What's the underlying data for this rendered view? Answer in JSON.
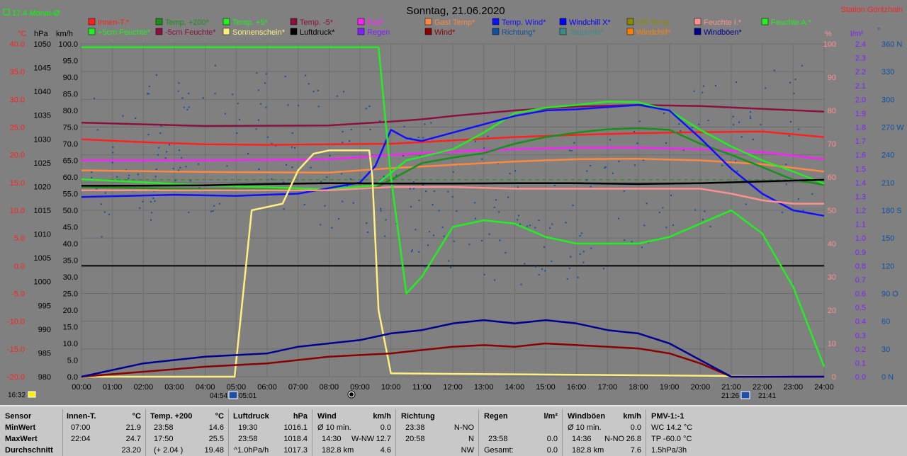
{
  "header": {
    "title": "Sonntag, 21.06.2020",
    "station": "Station Göritzhain",
    "avg_label": "17.4 Monat-Ø"
  },
  "legend": [
    {
      "label": "Innen-T.*",
      "color": "#ff2020"
    },
    {
      "label": "Temp. +200*",
      "color": "#1a8f1a"
    },
    {
      "label": "Temp. +5*",
      "color": "#22ee22"
    },
    {
      "label": "Temp. -5*",
      "color": "#8a1040"
    },
    {
      "label": "Bad*",
      "color": "#ff20ff"
    },
    {
      "label": "Gast Temp*",
      "color": "#ff8840"
    },
    {
      "label": "Temp. Wind*",
      "color": "#1010ff"
    },
    {
      "label": "Windchill X*",
      "color": "#0000ff"
    },
    {
      "label": "Diff Temp.",
      "color": "#8a8a00"
    },
    {
      "label": "Feuchte I.*",
      "color": "#ff9090"
    },
    {
      "label": "Feuchte A.*",
      "color": "#22ee22"
    },
    {
      "label": "+5cm Feuchte*",
      "color": "#22ee22"
    },
    {
      "label": "-5cm Feuchte*",
      "color": "#8a1040"
    },
    {
      "label": "Sonnenschein*",
      "color": "#ffee80"
    },
    {
      "label": "Luftdruck*",
      "color": "#000000"
    },
    {
      "label": "Regen",
      "color": "#8020ff"
    },
    {
      "label": "Wind*",
      "color": "#8a0000"
    },
    {
      "label": "Richtung*",
      "color": "#1050a0"
    },
    {
      "label": "Taupunkt*",
      "color": "#3a8a8a"
    },
    {
      "label": "Windchill*",
      "color": "#ff8000"
    },
    {
      "label": "Windböen*",
      "color": "#000090"
    }
  ],
  "axes": {
    "temp_unit": "°C",
    "pressure_unit": "hPa",
    "wind_unit": "km/h",
    "humidity_unit": "%",
    "rain_unit": "l/m²",
    "dir_unit": "°",
    "temp_ticks": [
      "40.0",
      "35.0",
      "30.0",
      "25.0",
      "20.0",
      "15.0",
      "10.0",
      "5.0",
      "0.0",
      "-5.0",
      "-10.0",
      "-15.0",
      "-20.0"
    ],
    "pressure_ticks": [
      "1050",
      "1045",
      "1040",
      "1035",
      "1030",
      "1025",
      "1020",
      "1015",
      "1010",
      "1005",
      "1000",
      "995",
      "990",
      "985",
      "980"
    ],
    "wind_ticks": [
      "100.0",
      "95.0",
      "90.0",
      "85.0",
      "80.0",
      "75.0",
      "70.0",
      "65.0",
      "60.0",
      "55.0",
      "50.0",
      "45.0",
      "40.0",
      "35.0",
      "30.0",
      "25.0",
      "20.0",
      "15.0",
      "10.0",
      "5.0",
      "0.0"
    ],
    "humidity_ticks": [
      "100",
      "90",
      "80",
      "70",
      "60",
      "50",
      "40",
      "30",
      "20",
      "10",
      "0"
    ],
    "rain_ticks": [
      "2.4",
      "2.3",
      "2.2",
      "2.1",
      "2.0",
      "1.9",
      "1.8",
      "1.7",
      "1.6",
      "1.5",
      "1.4",
      "1.3",
      "1.2",
      "1.1",
      "1.0",
      "0.9",
      "0.8",
      "0.7",
      "0.6",
      "0.5",
      "0.4",
      "0.3",
      "0.2",
      "0.1",
      "0.0"
    ],
    "dir_ticks": [
      "360 N",
      "330",
      "300",
      "270 W",
      "240",
      "210",
      "180 S",
      "150",
      "120",
      "90 O",
      "60",
      "30",
      "0 N"
    ],
    "time_ticks": [
      "00:00",
      "01:00",
      "02:00",
      "03:00",
      "04:00",
      "05:00",
      "06:00",
      "07:00",
      "08:00",
      "09:00",
      "10:00",
      "11:00",
      "12:00",
      "13:00",
      "14:00",
      "15:00",
      "16:00",
      "17:00",
      "18:00",
      "19:00",
      "20:00",
      "21:00",
      "22:00",
      "23:00",
      "24:00"
    ],
    "sunrise_label": "04:54",
    "sunrise2_label": "05:01",
    "sunset_label": "21:26",
    "sunset2_label": "21:41",
    "clock_label": "16:32"
  },
  "chart_data": {
    "type": "line",
    "x_unit": "hours",
    "xlim": [
      0,
      24
    ],
    "temp_ylim": [
      -20,
      40
    ],
    "wind_ylim": [
      0,
      100
    ],
    "humidity_ylim": [
      0,
      100
    ],
    "series": [
      {
        "name": "Innen-T.*",
        "color": "#ff2020",
        "axis": "temp",
        "x": [
          0,
          2,
          4,
          6,
          8,
          10,
          12,
          14,
          16,
          18,
          20,
          22,
          24
        ],
        "y": [
          22.8,
          22.3,
          21.9,
          21.8,
          21.9,
          22.0,
          22.6,
          23.2,
          23.6,
          23.9,
          24.1,
          24.2,
          23.2
        ]
      },
      {
        "name": "Bad*",
        "color": "#ff20ff",
        "axis": "temp",
        "x": [
          0,
          4,
          8,
          10,
          12,
          14,
          16,
          18,
          20,
          22,
          24
        ],
        "y": [
          19.0,
          19.0,
          19.2,
          20.0,
          20.6,
          21.0,
          21.3,
          21.3,
          21.0,
          20.5,
          19.2
        ]
      },
      {
        "name": "Gast Temp*",
        "color": "#ff8840",
        "axis": "temp",
        "x": [
          0,
          4,
          8,
          10,
          12,
          14,
          16,
          18,
          20,
          22,
          24
        ],
        "y": [
          17.2,
          16.9,
          16.8,
          17.6,
          18.2,
          18.8,
          19.2,
          19.3,
          19.0,
          18.3,
          17.0
        ]
      },
      {
        "name": "Temp. -5*",
        "color": "#8a1040",
        "axis": "temp",
        "x": [
          0,
          4,
          8,
          10,
          11,
          12,
          14,
          16,
          18,
          20,
          22,
          24
        ],
        "y": [
          25.8,
          25.2,
          25.3,
          26.0,
          26.4,
          27.0,
          28.0,
          28.7,
          29.0,
          28.8,
          28.3,
          27.8
        ]
      },
      {
        "name": "Temp. +200*",
        "color": "#1a8f1a",
        "axis": "temp",
        "x": [
          0,
          4,
          8,
          9.5,
          11,
          12,
          13,
          14,
          15,
          16,
          17,
          18,
          19,
          20,
          21,
          22,
          23,
          24
        ],
        "y": [
          14.2,
          13.8,
          13.7,
          14.0,
          18.5,
          19.5,
          20.3,
          22.0,
          23.2,
          24.0,
          24.6,
          24.8,
          24.5,
          22.0,
          20.0,
          17.8,
          15.5,
          14.6
        ]
      },
      {
        "name": "Temp. +5*",
        "color": "#22ee22",
        "axis": "temp",
        "x": [
          0,
          4,
          8,
          9.5,
          10.5,
          12,
          13,
          14,
          15,
          16,
          17,
          18,
          19,
          20,
          21,
          22,
          23,
          24
        ],
        "y": [
          15.6,
          14.5,
          13.8,
          14.5,
          19.0,
          21.0,
          24.0,
          27.5,
          28.5,
          29.0,
          29.6,
          29.5,
          28.0,
          24.5,
          21.5,
          19.0,
          17.0,
          14.8
        ]
      },
      {
        "name": "Temp. Wind*",
        "color": "#1010ff",
        "axis": "temp",
        "x": [
          0,
          3,
          5,
          7,
          8,
          9,
          9.5,
          10,
          10.5,
          11,
          12,
          13,
          14,
          15,
          16,
          17,
          18,
          19,
          20,
          21,
          22,
          23,
          24
        ],
        "y": [
          12.4,
          12.8,
          12.6,
          13.0,
          14.0,
          15.0,
          18.0,
          24.5,
          23.0,
          22.5,
          24.0,
          25.5,
          27.0,
          28.0,
          28.2,
          28.6,
          29.0,
          28.0,
          23.0,
          17.5,
          13.0,
          10.0,
          9.0
        ]
      },
      {
        "name": "Feuchte I.*",
        "color": "#ff9090",
        "axis": "humidity",
        "x": [
          0,
          4,
          8,
          10,
          12,
          14,
          16,
          18,
          20,
          21,
          22,
          23,
          24
        ],
        "y": [
          56.0,
          56.0,
          56.0,
          57.0,
          57.0,
          56.5,
          56.5,
          56.5,
          56.5,
          55.0,
          53.0,
          52.0,
          52.0
        ]
      },
      {
        "name": "Feuchte A.*",
        "color": "#22ee22",
        "axis": "humidity",
        "x": [
          0,
          9.6,
          10,
          10.5,
          11,
          12,
          13,
          14,
          15,
          16,
          17,
          18,
          19,
          20,
          21,
          22,
          22.5,
          23,
          23.5,
          24
        ],
        "y": [
          99,
          99,
          60,
          25,
          30,
          45,
          47,
          46,
          42,
          40,
          40,
          40,
          42,
          46,
          50,
          43,
          35,
          27,
          15,
          3
        ]
      },
      {
        "name": "Luftdruck*",
        "color": "#000000",
        "axis": "pressure",
        "x": [
          0,
          2,
          4,
          6,
          8,
          10,
          12,
          14,
          16,
          18,
          20,
          22,
          24
        ],
        "y": [
          1016.2,
          1016.2,
          1016.3,
          1016.6,
          1016.8,
          1016.7,
          1016.7,
          1016.8,
          1016.8,
          1016.6,
          1016.8,
          1017.2,
          1017.6
        ]
      },
      {
        "name": "Sonnenschein*",
        "color": "#ffee80",
        "axis": "humidity",
        "x": [
          0,
          4.95,
          5.5,
          6.5,
          7.0,
          7.5,
          8.0,
          8.5,
          9.0,
          9.3,
          9.4,
          9.6,
          10.0,
          24
        ],
        "y": [
          0,
          0,
          50,
          52,
          62,
          67,
          68,
          68,
          68,
          68,
          60,
          20,
          1,
          0
        ]
      },
      {
        "name": "Wind*",
        "color": "#8a0000",
        "axis": "wind",
        "x": [
          0,
          2,
          4,
          6,
          7,
          8,
          9,
          10,
          11,
          12,
          13,
          14,
          15,
          16,
          17,
          18,
          19,
          20,
          21,
          22,
          24
        ],
        "y": [
          0,
          1.5,
          3.0,
          4.0,
          5.0,
          6.0,
          6.5,
          7.0,
          8.0,
          9.0,
          9.5,
          9.0,
          10.0,
          9.5,
          9.0,
          8.5,
          7.0,
          4.0,
          0,
          0,
          0
        ]
      },
      {
        "name": "Windböen*",
        "color": "#000090",
        "axis": "wind",
        "x": [
          0,
          2,
          4,
          6,
          7,
          8,
          9,
          10,
          11,
          12,
          13,
          14,
          15,
          16,
          17,
          18,
          19,
          20,
          21,
          22,
          24
        ],
        "y": [
          0,
          4,
          6,
          7,
          9,
          10,
          11,
          13,
          14,
          16,
          17,
          16,
          17,
          16,
          14,
          13,
          10,
          5,
          0,
          0,
          0
        ]
      }
    ]
  },
  "stats": {
    "row_labels": [
      "Sensor",
      "MinWert",
      "MaxWert",
      "Durchschnitt"
    ],
    "innen": {
      "title": "Innen-T.",
      "unit": "°C",
      "min_time": "07:00",
      "min": "21.9",
      "max_time": "22:04",
      "max": "24.7",
      "avg": "23.20"
    },
    "temp200": {
      "title": "Temp. +200",
      "unit": "°C",
      "min_time": "23:58",
      "min": "14.6",
      "max_time": "17:50",
      "max": "25.5",
      "diff": "(+ 2.04 )",
      "avg": "19.48"
    },
    "luftdruck": {
      "title": "Luftdruck",
      "unit": "hPa",
      "min_time": "19:30",
      "min": "1016.1",
      "max_time": "23:58",
      "max": "1018.4",
      "trend": "^1.0hPa/h",
      "avg": "1017.3"
    },
    "wind": {
      "title": "Wind",
      "unit": "km/h",
      "min_label": "Ø 10 min.",
      "min": "0.0",
      "max_time": "14:30",
      "max_dir": "W-NW",
      "max": "12.7",
      "dist": "182.8 km",
      "avg": "4.6"
    },
    "richtung": {
      "title": "Richtung",
      "min_time": "23:38",
      "min": "N-NO",
      "max_time": "20:58",
      "max": "N",
      "avg": "NW"
    },
    "regen": {
      "title": "Regen",
      "unit": "l/m²",
      "max_time": "23:58",
      "max": "0.0",
      "total_label": "Gesamt:",
      "total": "0.0"
    },
    "boeen": {
      "title": "Windböen",
      "unit": "km/h",
      "min_label": "Ø 10 min.",
      "min": "0.0",
      "max_time": "14:36",
      "max_dir": "N-NO",
      "max": "26.8",
      "dist": "182.8 km",
      "avg": "7.6"
    },
    "pmv": {
      "title": "PMV-1:-1",
      "wc": "WC 14.2 °C",
      "tp": "TP -60.0 °C",
      "trend": "1.5hPa/3h"
    }
  }
}
